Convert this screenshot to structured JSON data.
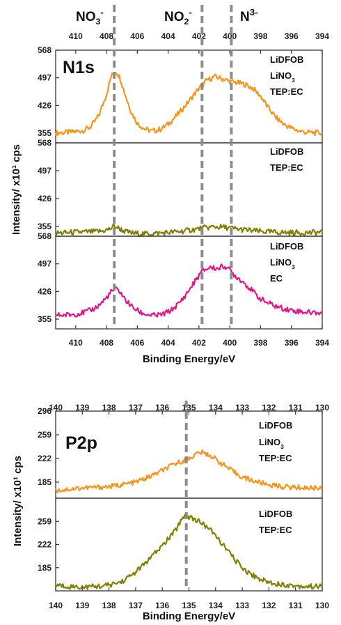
{
  "chart_data": [
    {
      "type": "line",
      "panel": "N1s",
      "panel_label": "N1s",
      "xlabel": "Binding Energy/eV",
      "ylabel": "Intensity/ x10¹ cps",
      "xlim": [
        411.3,
        394
      ],
      "x_reversed": true,
      "x_ticks": [
        410,
        408,
        406,
        404,
        402,
        400,
        398,
        396,
        394
      ],
      "peak_lines": [
        {
          "x": 407.5,
          "label_main": "NO",
          "label_sub": "3",
          "label_sup": "-"
        },
        {
          "x": 401.8,
          "label_main": "NO",
          "label_sub": "2",
          "label_sup": "-"
        },
        {
          "x": 399.9,
          "label_main": "N",
          "label_sub": "",
          "label_sup": "3-"
        }
      ],
      "subplots": [
        {
          "ylim": [
            330,
            568
          ],
          "y_ticks": [
            355,
            426,
            497,
            568
          ],
          "color": "#f7941d",
          "legend": [
            {
              "main": "LiDFOB",
              "sub": ""
            },
            {
              "main": "LiNO",
              "sub": "3"
            },
            {
              "main": "TEP:EC",
              "sub": ""
            }
          ],
          "x": [
            411.3,
            410.5,
            410,
            409.5,
            409,
            408.5,
            408,
            407.7,
            407.4,
            407.1,
            406.8,
            406.4,
            406,
            405.5,
            405,
            404.5,
            404,
            403.5,
            403,
            402.5,
            402,
            401.5,
            401,
            400.5,
            400,
            399.5,
            399,
            398.5,
            398,
            397.5,
            397,
            396.5,
            396,
            395.5,
            395,
            394.5,
            394
          ],
          "y": [
            355,
            357,
            359,
            362,
            372,
            400,
            455,
            500,
            515,
            495,
            455,
            410,
            380,
            365,
            360,
            365,
            378,
            398,
            420,
            445,
            470,
            490,
            500,
            495,
            488,
            484,
            480,
            470,
            450,
            420,
            395,
            378,
            368,
            360,
            357,
            356,
            355
          ]
        },
        {
          "ylim": [
            330,
            568
          ],
          "y_ticks": [
            355,
            426,
            497,
            568
          ],
          "color": "#808000",
          "legend": [
            {
              "main": "LiDFOB",
              "sub": ""
            },
            {
              "main": "TEP:EC",
              "sub": ""
            }
          ],
          "x": [
            411.3,
            410.5,
            410,
            409,
            408.3,
            407.8,
            407.5,
            407.2,
            406.8,
            406.2,
            405.5,
            404.5,
            403.5,
            403,
            402.5,
            402,
            401.5,
            401,
            400.5,
            400,
            399.5,
            399,
            398.5,
            398,
            397,
            396,
            395,
            394
          ],
          "y": [
            338,
            339,
            340,
            341,
            343,
            348,
            356,
            350,
            342,
            337,
            336,
            338,
            341,
            343,
            346,
            349,
            352,
            354,
            353,
            351,
            348,
            346,
            344,
            342,
            340,
            339,
            339,
            340
          ]
        },
        {
          "ylim": [
            330,
            568
          ],
          "y_ticks": [
            355,
            426,
            497,
            568
          ],
          "color": "#e6168a",
          "legend": [
            {
              "main": "LiDFOB",
              "sub": ""
            },
            {
              "main": "LiNO",
              "sub": "3"
            },
            {
              "main": "EC",
              "sub": ""
            }
          ],
          "x": [
            411.3,
            410.5,
            410,
            409.5,
            409,
            408.5,
            408,
            407.7,
            407.4,
            407.1,
            406.8,
            406.3,
            405.8,
            405.3,
            404.8,
            404.3,
            403.8,
            403.3,
            402.8,
            402.3,
            401.8,
            401.3,
            400.8,
            400.3,
            400,
            399.6,
            399.1,
            398.6,
            398.1,
            397.6,
            397,
            396.5,
            396,
            395.5,
            395,
            394.5,
            394
          ],
          "y": [
            365,
            366,
            368,
            372,
            378,
            390,
            410,
            425,
            432,
            425,
            405,
            385,
            372,
            366,
            364,
            368,
            378,
            395,
            420,
            450,
            478,
            488,
            485,
            492,
            480,
            465,
            450,
            430,
            410,
            398,
            388,
            382,
            378,
            375,
            373,
            372,
            371
          ]
        }
      ]
    },
    {
      "type": "line",
      "panel": "P2p",
      "panel_label": "P2p",
      "xlabel": "Binding Energy/eV",
      "ylabel": "Intensity/ x10¹ cps",
      "xlim": [
        140,
        130
      ],
      "x_reversed": true,
      "x_ticks": [
        140,
        139,
        138,
        137,
        136,
        135,
        134,
        133,
        132,
        131,
        130
      ],
      "peak_lines": [
        {
          "x": 135.1
        }
      ],
      "subplots": [
        {
          "ylim": [
            160,
            296
          ],
          "y_ticks": [
            185,
            222,
            259,
            296
          ],
          "color": "#f7941d",
          "legend": [
            {
              "main": "LiDFOB",
              "sub": ""
            },
            {
              "main": "LiNO",
              "sub": "3"
            },
            {
              "main": "TEP:EC",
              "sub": ""
            }
          ],
          "x": [
            140,
            139.5,
            139,
            138.5,
            138,
            137.5,
            137,
            136.5,
            136,
            135.5,
            135,
            134.6,
            134.2,
            133.8,
            133.4,
            133,
            132.5,
            132,
            131.5,
            131,
            130.5,
            130
          ],
          "y": [
            172,
            174,
            176,
            177,
            178,
            181,
            185,
            193,
            203,
            214,
            222,
            232,
            227,
            215,
            203,
            193,
            186,
            181,
            178,
            177,
            176,
            176
          ]
        },
        {
          "ylim": [
            148,
            296
          ],
          "y_ticks": [
            185,
            222,
            259
          ],
          "color": "#808000",
          "legend": [
            {
              "main": "LiDFOB",
              "sub": ""
            },
            {
              "main": "TEP:EC",
              "sub": ""
            }
          ],
          "x": [
            140,
            139.5,
            139,
            138.5,
            138,
            137.5,
            137,
            136.5,
            136,
            135.5,
            135.2,
            134.9,
            134.6,
            134.3,
            134,
            133.6,
            133.2,
            132.8,
            132.4,
            132,
            131.5,
            131,
            130.5,
            130
          ],
          "y": [
            157,
            155,
            154,
            155,
            157,
            163,
            178,
            198,
            220,
            245,
            268,
            265,
            258,
            250,
            236,
            215,
            194,
            178,
            168,
            162,
            158,
            156,
            155,
            155
          ]
        }
      ]
    }
  ]
}
